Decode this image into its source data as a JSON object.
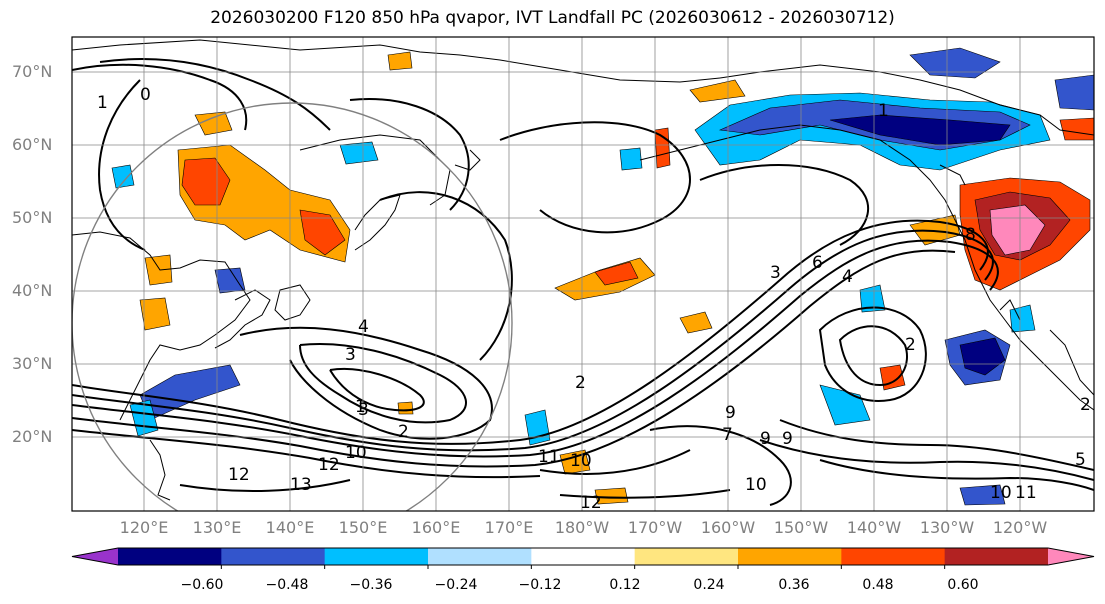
{
  "title": "2026030200 F120 850 hPa qvapor, IVT Landfall PC (2026030612 - 2026030712)",
  "lat_labels": [
    "70°N",
    "60°N",
    "50°N",
    "40°N",
    "30°N",
    "20°N"
  ],
  "lon_labels": [
    "120°E",
    "130°E",
    "140°E",
    "150°E",
    "160°E",
    "170°E",
    "180°W",
    "170°W",
    "160°W",
    "150°W",
    "140°W",
    "130°W",
    "120°W"
  ],
  "colorbar": {
    "tick_labels": [
      "−0.60",
      "−0.48",
      "−0.36",
      "−0.24",
      "−0.12",
      "0.12",
      "0.24",
      "0.36",
      "0.48",
      "0.60"
    ],
    "colors": [
      "#9933cc",
      "#000080",
      "#3355cc",
      "#00bfff",
      "#b0e0ff",
      "#ffffff",
      "#ffe680",
      "#ffa500",
      "#ff4500",
      "#b22222",
      "#ff88bb"
    ]
  },
  "contour_labels": [
    "1",
    "0",
    "1",
    "4",
    "3",
    "3",
    "1",
    "2",
    "2",
    "12",
    "10",
    "13",
    "12",
    "11",
    "10",
    "9",
    "10",
    "12",
    "9",
    "9",
    "7",
    "2",
    "4",
    "8",
    "6",
    "3",
    "2",
    "5",
    "10",
    "11"
  ]
}
